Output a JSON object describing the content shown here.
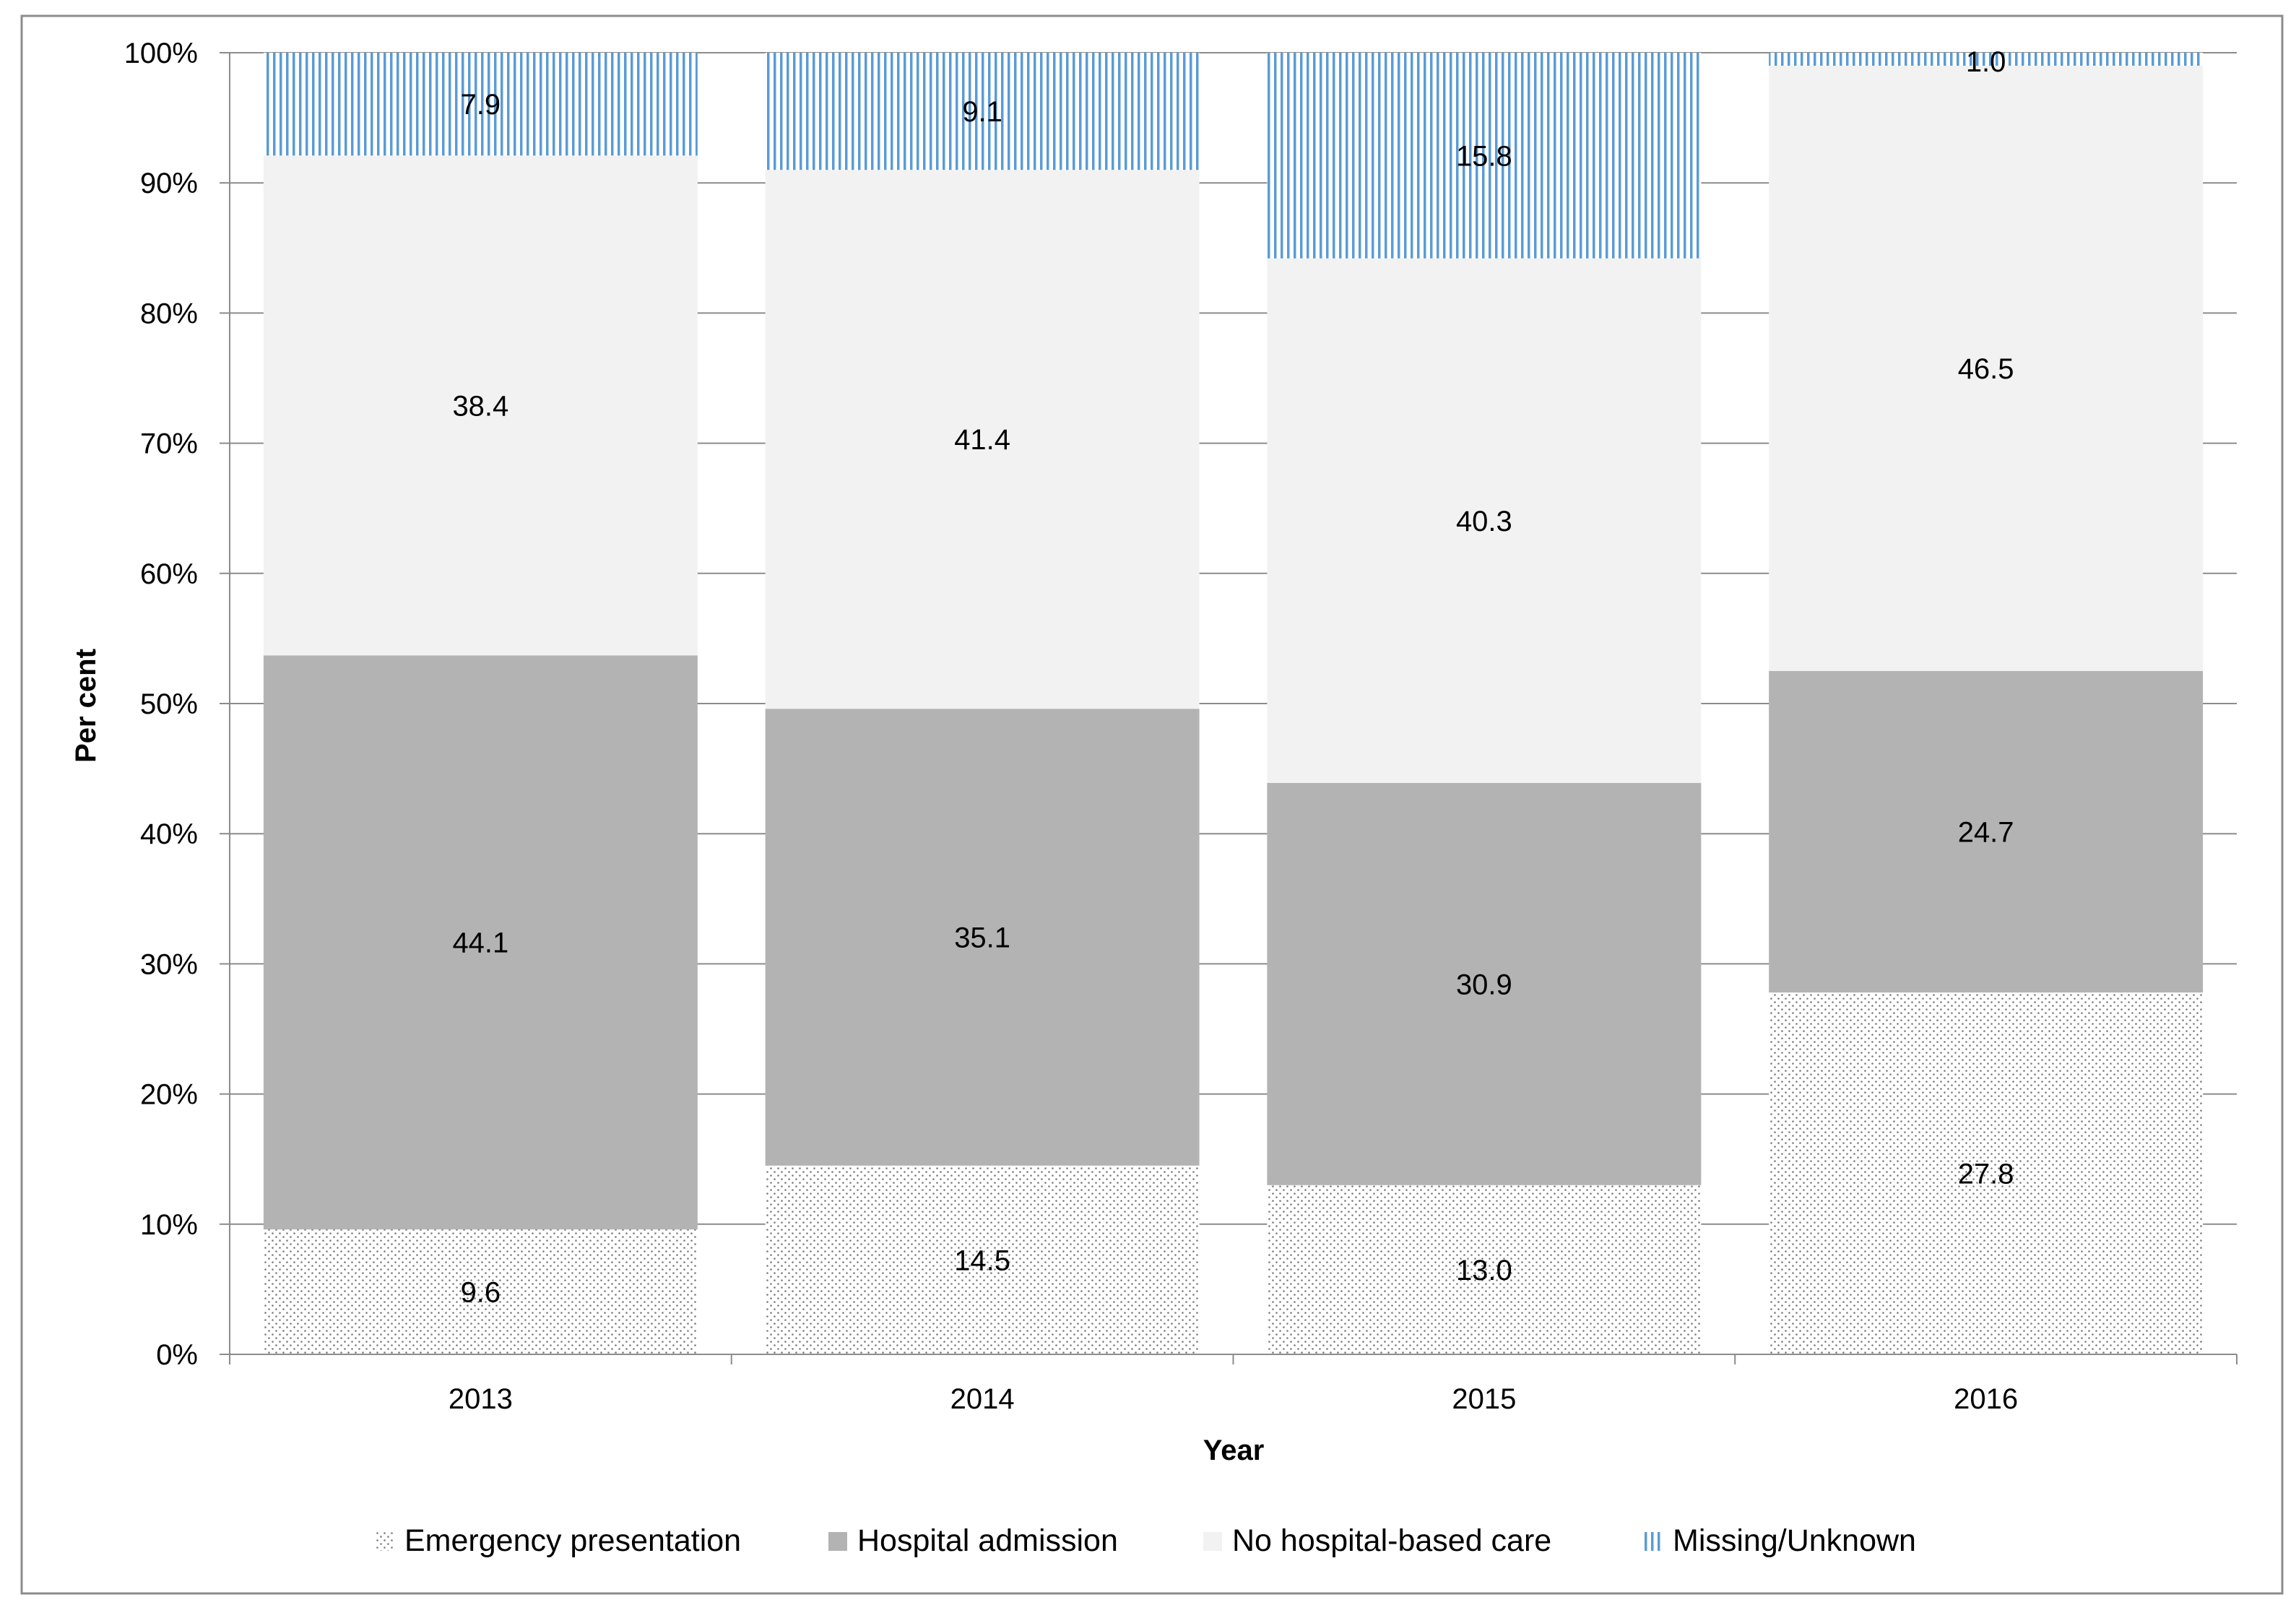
{
  "chart_data": {
    "type": "bar",
    "stacked": true,
    "title": "",
    "xlabel": "Year",
    "ylabel": "Per cent",
    "ylim": [
      0,
      100
    ],
    "yticks": [
      "0%",
      "10%",
      "20%",
      "30%",
      "40%",
      "50%",
      "60%",
      "70%",
      "80%",
      "90%",
      "100%"
    ],
    "categories": [
      "2013",
      "2014",
      "2015",
      "2016"
    ],
    "series": [
      {
        "name": "Emergency presentation",
        "values": [
          9.6,
          14.5,
          13.0,
          27.8
        ],
        "labels": [
          "9.6",
          "14.5",
          "13.0",
          "27.8"
        ],
        "color": "#ffffff",
        "pattern": "dots"
      },
      {
        "name": "Hospital admission",
        "values": [
          44.1,
          35.1,
          30.9,
          24.7
        ],
        "labels": [
          "44.1",
          "35.1",
          "30.9",
          "24.7"
        ],
        "color": "#b3b3b3",
        "pattern": "solid"
      },
      {
        "name": "No hospital-based care",
        "values": [
          38.4,
          41.4,
          40.3,
          46.5
        ],
        "labels": [
          "38.4",
          "41.4",
          "40.3",
          "46.5"
        ],
        "color": "#f2f2f2",
        "pattern": "solid"
      },
      {
        "name": "Missing/Unknown",
        "values": [
          7.9,
          9.1,
          15.8,
          1.0
        ],
        "labels": [
          "7.9",
          "9.1",
          "15.8",
          "1.0"
        ],
        "color": "#5b9bd5",
        "pattern": "vertical-lines"
      }
    ],
    "legend_position": "bottom",
    "grid": true
  }
}
